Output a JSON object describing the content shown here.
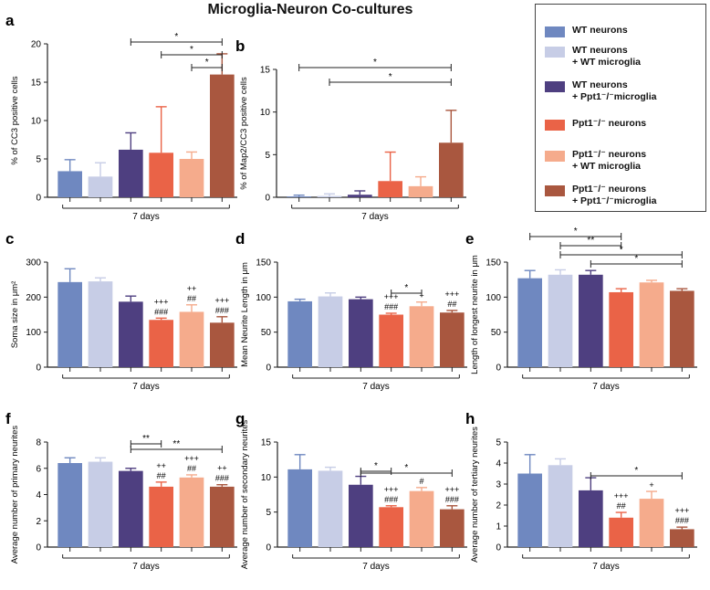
{
  "page": {
    "title": "Microglia-Neuron Co-cultures",
    "colors": {
      "wt": "#6f88c0",
      "wt_wtmg": "#c7cde6",
      "wt_kimg": "#4e3f80",
      "ko": "#ea6347",
      "ko_wtmg": "#f5ab8c",
      "ko_kimg": "#a9573f"
    }
  },
  "legend": {
    "items": [
      {
        "lines": [
          "WT neurons"
        ],
        "color": "#6f88c0"
      },
      {
        "lines": [
          "WT neurons",
          "+ WT microglia"
        ],
        "color": "#c7cde6"
      },
      {
        "lines": [
          "WT neurons",
          "+ Ppt1⁻/⁻microglia"
        ],
        "color": "#4e3f80"
      },
      {
        "lines": [
          "Ppt1⁻/⁻ neurons"
        ],
        "color": "#ea6347"
      },
      {
        "lines": [
          "Ppt1⁻/⁻ neurons",
          "+ WT microglia"
        ],
        "color": "#f5ab8c"
      },
      {
        "lines": [
          "Ppt1⁻/⁻ neurons",
          "+ Ppt1⁻/⁻microglia"
        ],
        "color": "#a9573f"
      }
    ]
  },
  "chart_data": [
    {
      "panel": "a",
      "type": "bar",
      "title": "",
      "xlabel": "7 days",
      "ylabel": "% of CC3 positive cells",
      "ylim": [
        0,
        20
      ],
      "yticks": [
        "0",
        "5",
        "10",
        "15",
        "20"
      ],
      "categories": [
        "WT neurons",
        "WT neurons + WT microglia",
        "WT neurons + Ppt1-/- microglia",
        "Ppt1-/- neurons",
        "Ppt1-/- neurons + WT microglia",
        "Ppt1-/- neurons + Ppt1-/- microglia"
      ],
      "values": [
        3.4,
        2.7,
        6.2,
        5.8,
        5.0,
        16.0
      ],
      "errors": [
        1.5,
        1.8,
        2.2,
        6.0,
        0.9,
        2.7
      ],
      "annotations": [],
      "comparisons": [
        {
          "from": 2,
          "to": 5,
          "label": "*"
        },
        {
          "from": 3,
          "to": 5,
          "label": "*"
        },
        {
          "from": 4,
          "to": 5,
          "label": "*"
        }
      ]
    },
    {
      "panel": "b",
      "type": "bar",
      "title": "",
      "xlabel": "7 days",
      "ylabel": "% of Map2/CC3 positive cells",
      "ylim": [
        0,
        15
      ],
      "yticks": [
        "0",
        "5",
        "10",
        "15"
      ],
      "categories": [
        "WT neurons",
        "WT neurons + WT microglia",
        "WT neurons + Ppt1-/- microglia",
        "Ppt1-/- neurons",
        "Ppt1-/- neurons + WT microglia",
        "Ppt1-/- neurons + Ppt1-/- microglia"
      ],
      "values": [
        0.1,
        0.15,
        0.3,
        1.9,
        1.3,
        6.4
      ],
      "errors": [
        0.15,
        0.25,
        0.45,
        3.4,
        1.1,
        3.8
      ],
      "annotations": [],
      "comparisons": [
        {
          "from": 0,
          "to": 5,
          "label": "*"
        },
        {
          "from": 1,
          "to": 5,
          "label": "*"
        }
      ]
    },
    {
      "panel": "c",
      "type": "bar",
      "title": "",
      "xlabel": "7 days",
      "ylabel": "Soma size in μm²",
      "ylim": [
        0,
        300
      ],
      "yticks": [
        "0",
        "100",
        "200",
        "300"
      ],
      "categories": [
        "WT neurons",
        "WT neurons + WT microglia",
        "WT neurons + Ppt1-/- microglia",
        "Ppt1-/- neurons",
        "Ppt1-/- neurons + WT microglia",
        "Ppt1-/- neurons + Ppt1-/- microglia"
      ],
      "values": [
        243,
        245,
        187,
        135,
        158,
        127
      ],
      "errors": [
        38,
        10,
        16,
        5,
        20,
        17
      ],
      "annotations": [
        [],
        [],
        [],
        [
          "###",
          "+++"
        ],
        [
          "##",
          "++"
        ],
        [
          "###",
          "+++"
        ]
      ],
      "comparisons": []
    },
    {
      "panel": "d",
      "type": "bar",
      "title": "",
      "xlabel": "7 days",
      "ylabel": "Mean Neurite Length in μm",
      "ylim": [
        0,
        150
      ],
      "yticks": [
        "0",
        "50",
        "100",
        "150"
      ],
      "categories": [
        "WT neurons",
        "WT neurons + WT microglia",
        "WT neurons + Ppt1-/- microglia",
        "Ppt1-/- neurons",
        "Ppt1-/- neurons + WT microglia",
        "Ppt1-/- neurons + Ppt1-/- microglia"
      ],
      "values": [
        94,
        101,
        97,
        75,
        87,
        78
      ],
      "errors": [
        3,
        5,
        3,
        2,
        6,
        3
      ],
      "annotations": [
        [],
        [],
        [],
        [
          "###",
          "+++"
        ],
        [
          "+"
        ],
        [
          "##",
          "+++"
        ]
      ],
      "comparisons": [
        {
          "from": 3,
          "to": 4,
          "label": "*"
        }
      ]
    },
    {
      "panel": "e",
      "type": "bar",
      "title": "",
      "xlabel": "7 days",
      "ylabel": "Length of longest neurite in μm",
      "ylim": [
        0,
        150
      ],
      "yticks": [
        "0",
        "50",
        "100",
        "150"
      ],
      "categories": [
        "WT neurons",
        "WT neurons + WT microglia",
        "WT neurons + Ppt1-/- microglia",
        "Ppt1-/- neurons",
        "Ppt1-/- neurons + WT microglia",
        "Ppt1-/- neurons + Ppt1-/- microglia"
      ],
      "values": [
        127,
        132,
        132,
        107,
        121,
        109
      ],
      "errors": [
        11,
        7,
        6,
        5,
        3,
        3
      ],
      "annotations": [],
      "comparisons": [
        {
          "from": 0,
          "to": 3,
          "label": "*"
        },
        {
          "from": 1,
          "to": 3,
          "label": "**"
        },
        {
          "from": 1,
          "to": 5,
          "label": "*"
        },
        {
          "from": 2,
          "to": 5,
          "label": "*"
        }
      ]
    },
    {
      "panel": "f",
      "type": "bar",
      "title": "",
      "xlabel": "7 days",
      "ylabel": "Average number of primary neurites",
      "ylim": [
        0,
        8
      ],
      "yticks": [
        "0",
        "2",
        "4",
        "6",
        "8"
      ],
      "categories": [
        "WT neurons",
        "WT neurons + WT microglia",
        "WT neurons + Ppt1-/- microglia",
        "Ppt1-/- neurons",
        "Ppt1-/- neurons + WT microglia",
        "Ppt1-/- neurons + Ppt1-/- microglia"
      ],
      "values": [
        6.4,
        6.5,
        5.8,
        4.6,
        5.3,
        4.6
      ],
      "errors": [
        0.4,
        0.3,
        0.2,
        0.35,
        0.2,
        0.15
      ],
      "annotations": [
        [],
        [],
        [],
        [
          "##",
          "++"
        ],
        [
          "##",
          "+++"
        ],
        [
          "###",
          "++"
        ]
      ],
      "comparisons": [
        {
          "from": 2,
          "to": 3,
          "label": "**"
        },
        {
          "from": 2,
          "to": 5,
          "label": "**"
        }
      ]
    },
    {
      "panel": "g",
      "type": "bar",
      "title": "",
      "xlabel": "7 days",
      "ylabel": "Average number of secondary neurites",
      "ylim": [
        0,
        15
      ],
      "yticks": [
        "0",
        "5",
        "10",
        "15"
      ],
      "categories": [
        "WT neurons",
        "WT neurons + WT microglia",
        "WT neurons + Ppt1-/- microglia",
        "Ppt1-/- neurons",
        "Ppt1-/- neurons + WT microglia",
        "Ppt1-/- neurons + Ppt1-/- microglia"
      ],
      "values": [
        11.1,
        10.9,
        8.9,
        5.7,
        8.0,
        5.4
      ],
      "errors": [
        2.1,
        0.5,
        1.2,
        0.2,
        0.5,
        0.5
      ],
      "annotations": [
        [],
        [],
        [],
        [
          "###",
          "+++"
        ],
        [
          "#"
        ],
        [
          "###",
          "+++"
        ]
      ],
      "comparisons": [
        {
          "from": 2,
          "to": 3,
          "label": "*"
        },
        {
          "from": 2,
          "to": 5,
          "label": "*"
        }
      ]
    },
    {
      "panel": "h",
      "type": "bar",
      "title": "",
      "xlabel": "7 days",
      "ylabel": "Average number of tertiary neurites",
      "ylim": [
        0,
        5
      ],
      "yticks": [
        "0",
        "1",
        "2",
        "3",
        "4",
        "5"
      ],
      "categories": [
        "WT neurons",
        "WT neurons + WT microglia",
        "WT neurons + Ppt1-/- microglia",
        "Ppt1-/- neurons",
        "Ppt1-/- neurons + WT microglia",
        "Ppt1-/- neurons + Ppt1-/- microglia"
      ],
      "values": [
        3.5,
        3.9,
        2.7,
        1.4,
        2.3,
        0.85
      ],
      "errors": [
        0.9,
        0.3,
        0.6,
        0.25,
        0.35,
        0.1
      ],
      "annotations": [
        [],
        [],
        [],
        [
          "##",
          "+++"
        ],
        [
          "+"
        ],
        [
          "###",
          "+++"
        ]
      ],
      "comparisons": [
        {
          "from": 2,
          "to": 5,
          "label": "*"
        }
      ]
    }
  ]
}
